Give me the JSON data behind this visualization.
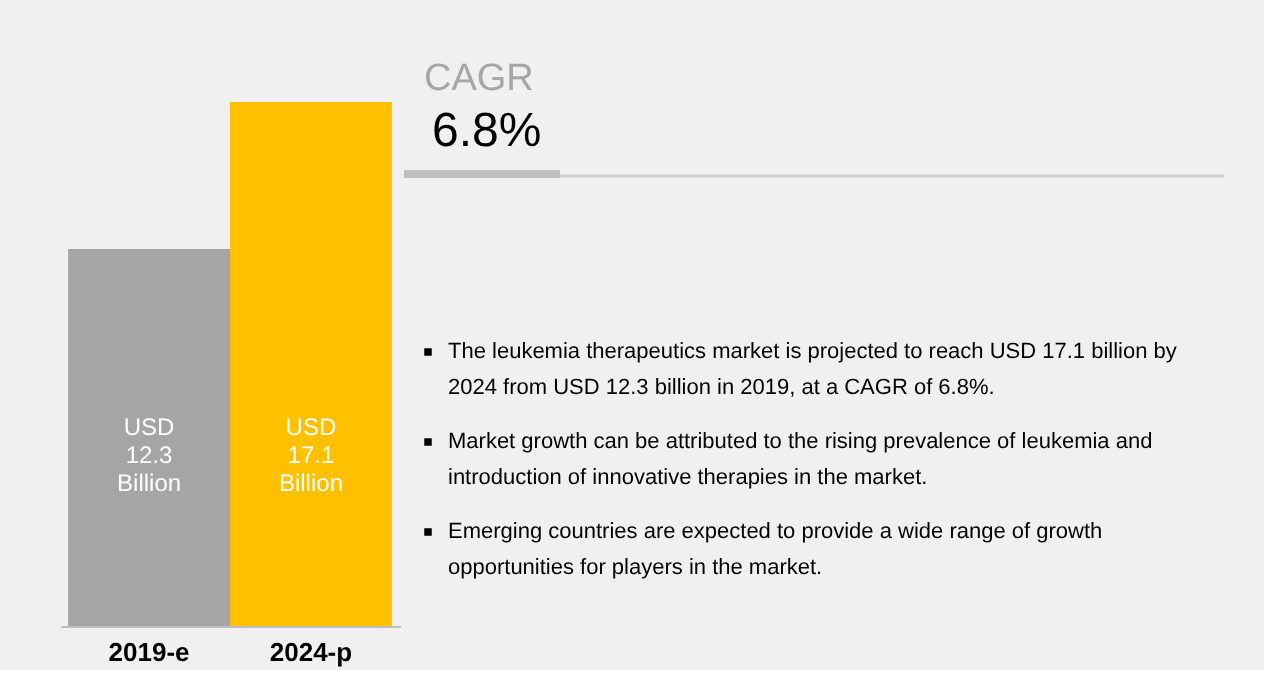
{
  "chart_data": {
    "type": "bar",
    "categories": [
      "2019-e",
      "2024-p"
    ],
    "values": [
      12.3,
      17.1
    ],
    "colors": [
      "#a5a5a5",
      "#ffc000"
    ],
    "value_labels": [
      "USD\n12.3\nBillion",
      "USD\n17.1\nBillion"
    ],
    "annotations": [
      "CAGR",
      "6.8%",
      "The leukemia therapeutics market is projected to reach USD 17.1 billion by 2024 from USD 12.3 billion in 2019, at a CAGR of 6.8%.",
      "Market growth can be attributed to the rising prevalence of leukemia and introduction of innovative therapies in the market.",
      "Emerging countries are expected to provide a wide range of growth opportunities for players in the market."
    ],
    "grid": false
  }
}
